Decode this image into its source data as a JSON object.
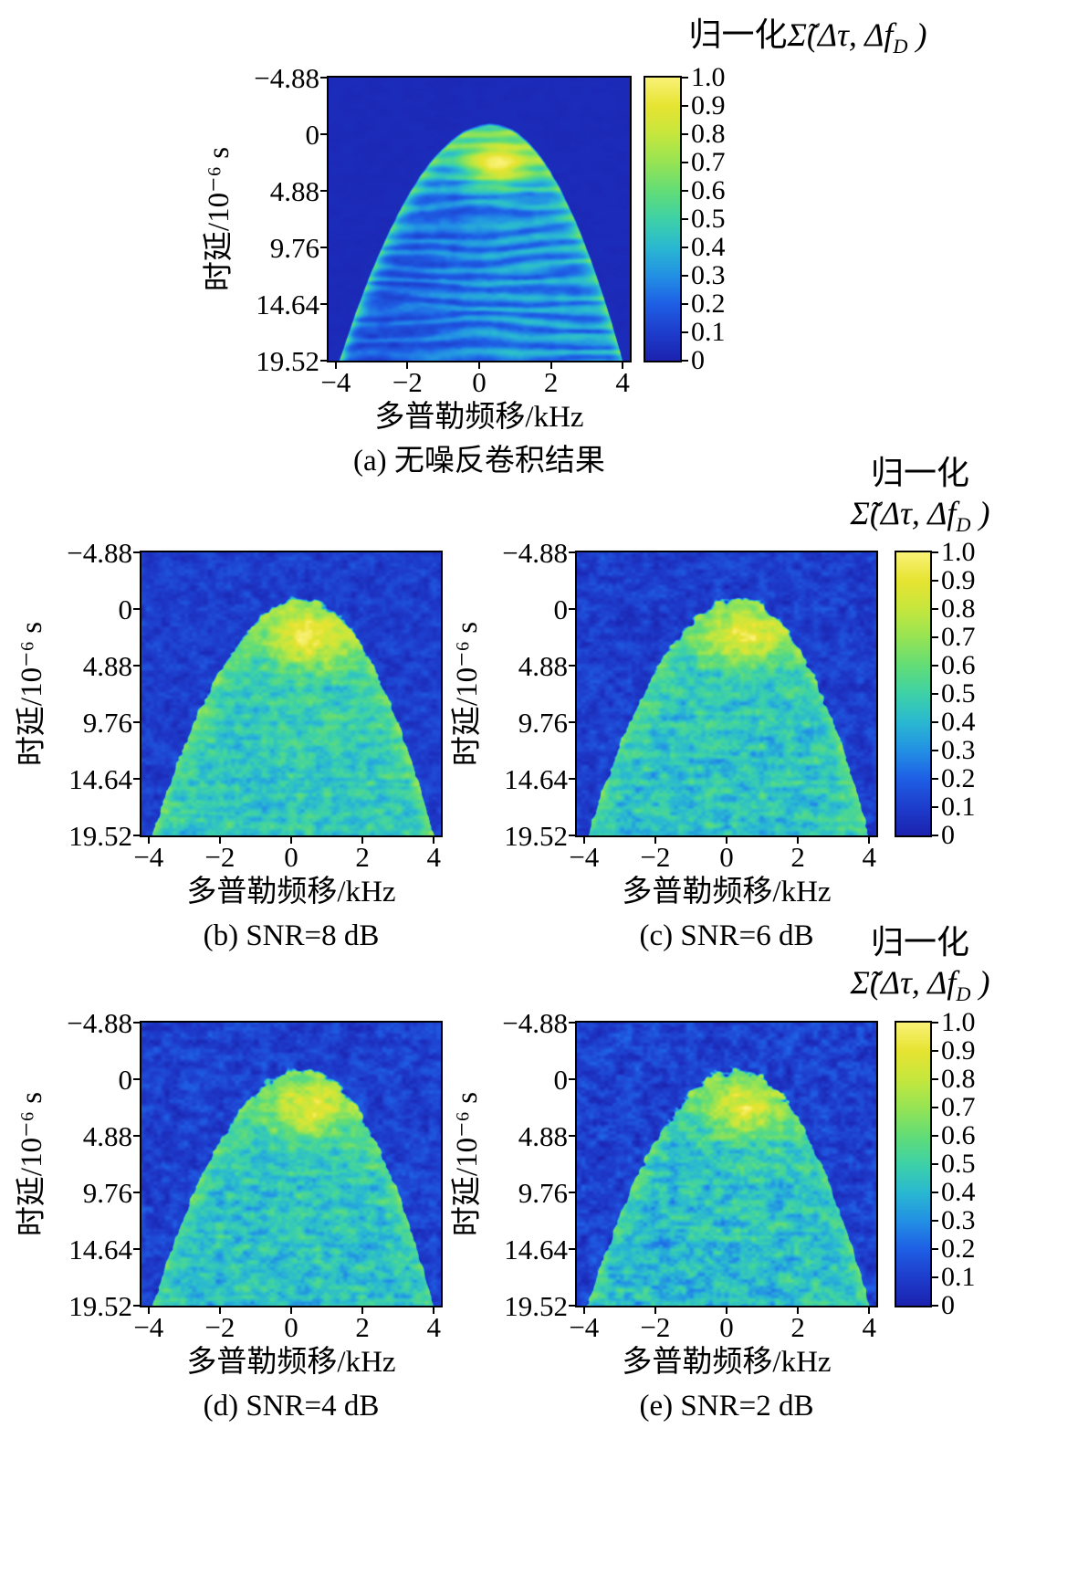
{
  "chart_data": {
    "type": "heatmap",
    "description": "Delay-Doppler normalized deconvolution heatmaps at different SNR levels, parula-like colormap, dome-shaped support with bright peak near zero Doppler and small positive delay",
    "colormap": [
      "#1c23b0",
      "#1e3ecd",
      "#1f60e6",
      "#2391e4",
      "#2ab9d2",
      "#3ed2a8",
      "#63dd77",
      "#97e455",
      "#c6e73e",
      "#e7e432",
      "#f9f276"
    ],
    "colorbar_ticks": [
      "1.0",
      "0.9",
      "0.8",
      "0.7",
      "0.6",
      "0.5",
      "0.4",
      "0.3",
      "0.2",
      "0.1",
      "0"
    ],
    "colorbar_tick_values": [
      1.0,
      0.9,
      0.8,
      0.7,
      0.6,
      0.5,
      0.4,
      0.3,
      0.2,
      0.1,
      0
    ],
    "colorbar_title": {
      "single_line": [
        [
          {
            "text": "归一化"
          },
          {
            "text": "Σ̃(Δτ, Δf",
            "math": true
          },
          {
            "text": "D",
            "math": true,
            "sub": true
          },
          {
            "text": " )",
            "math": true
          }
        ]
      ],
      "two_line": [
        [
          {
            "text": "归一化"
          }
        ],
        [
          {
            "text": "Σ̃(Δτ, Δf",
            "math": true
          },
          {
            "text": "D",
            "math": true,
            "sub": true
          },
          {
            "text": " )",
            "math": true
          }
        ]
      ]
    },
    "charts": [
      {
        "id": "a",
        "caption": "(a) 无噪反卷积结果",
        "snr_db": null,
        "xlabel": "多普勒频移/kHz",
        "ylabel": "时延/10⁻⁶ s",
        "xlim": [
          -4.2,
          4.2
        ],
        "ylim": [
          -4.88,
          19.52
        ],
        "x_tick_labels": [
          "−4",
          "−2",
          "0",
          "2",
          "4"
        ],
        "x_tick_values": [
          -4,
          -2,
          0,
          2,
          4
        ],
        "y_tick_labels": [
          "−4.88",
          "0",
          "4.88",
          "9.76",
          "14.64",
          "19.52"
        ],
        "y_tick_values": [
          -4.88,
          0,
          4.88,
          9.76,
          14.64,
          19.52
        ],
        "render": {
          "seed": 11,
          "apexX": 0.35,
          "apexY": -0.95,
          "kL": 1.13,
          "kR": 1.53,
          "bg": 0.03,
          "bgNoise": 0.012,
          "inBase": 0.4,
          "rimAmp": 0.32,
          "rimW": 1.6,
          "peakX": 0.5,
          "peakY": 2.5,
          "peakSX": 1.05,
          "peakSY": 2.0,
          "peakAmp": 0.58,
          "leftDim": 0.22,
          "stripeAmp": 0.5,
          "stripeF": 5.0,
          "inNoise": 0.05,
          "edgeNoise": 0.06,
          "nfx": 3.0,
          "nfy": 1.6
        }
      },
      {
        "id": "b",
        "caption": "(b) SNR=8 dB",
        "snr_db": 8,
        "xlabel": "多普勒频移/kHz",
        "ylabel": "时延/10⁻⁶ s",
        "xlim": [
          -4.2,
          4.2
        ],
        "ylim": [
          -4.88,
          19.52
        ],
        "x_tick_labels": [
          "−4",
          "−2",
          "0",
          "2",
          "4"
        ],
        "x_tick_values": [
          -4,
          -2,
          0,
          2,
          4
        ],
        "y_tick_labels": [
          "−4.88",
          "0",
          "4.88",
          "9.76",
          "14.64",
          "19.52"
        ],
        "y_tick_values": [
          -4.88,
          0,
          4.88,
          9.76,
          14.64,
          19.52
        ],
        "render": {
          "seed": 22,
          "apexX": 0.35,
          "apexY": -0.95,
          "kL": 1.13,
          "kR": 1.53,
          "bg": 0.1,
          "bgNoise": 0.09,
          "inBase": 0.5,
          "rimAmp": 0.16,
          "rimW": 2.3,
          "peakX": 0.5,
          "peakY": 2.5,
          "peakSX": 1.2,
          "peakSY": 2.4,
          "peakAmp": 0.42,
          "leftDim": 0.04,
          "stripeAmp": 0.12,
          "stripeF": 5.0,
          "inNoise": 0.15,
          "edgeNoise": 0.45,
          "nfx": 4.0,
          "nfy": 1.6
        }
      },
      {
        "id": "c",
        "caption": "(c) SNR=6 dB",
        "snr_db": 6,
        "xlabel": "多普勒频移/kHz",
        "ylabel": "时延/10⁻⁶ s",
        "xlim": [
          -4.2,
          4.2
        ],
        "ylim": [
          -4.88,
          19.52
        ],
        "x_tick_labels": [
          "−4",
          "−2",
          "0",
          "2",
          "4"
        ],
        "x_tick_values": [
          -4,
          -2,
          0,
          2,
          4
        ],
        "y_tick_labels": [
          "−4.88",
          "0",
          "4.88",
          "9.76",
          "14.64",
          "19.52"
        ],
        "y_tick_values": [
          -4.88,
          0,
          4.88,
          9.76,
          14.64,
          19.52
        ],
        "render": {
          "seed": 33,
          "apexX": 0.35,
          "apexY": -0.95,
          "kL": 1.13,
          "kR": 1.53,
          "bg": 0.1,
          "bgNoise": 0.1,
          "inBase": 0.48,
          "rimAmp": 0.15,
          "rimW": 2.3,
          "peakX": 0.5,
          "peakY": 2.5,
          "peakSX": 1.2,
          "peakSY": 2.4,
          "peakAmp": 0.4,
          "leftDim": 0.04,
          "stripeAmp": 0.12,
          "stripeF": 5.0,
          "inNoise": 0.16,
          "edgeNoise": 0.5,
          "nfx": 4.0,
          "nfy": 1.6
        }
      },
      {
        "id": "d",
        "caption": "(d) SNR=4 dB",
        "snr_db": 4,
        "xlabel": "多普勒频移/kHz",
        "ylabel": "时延/10⁻⁶ s",
        "xlim": [
          -4.2,
          4.2
        ],
        "ylim": [
          -4.88,
          19.52
        ],
        "x_tick_labels": [
          "−4",
          "−2",
          "0",
          "2",
          "4"
        ],
        "x_tick_values": [
          -4,
          -2,
          0,
          2,
          4
        ],
        "y_tick_labels": [
          "−4.88",
          "0",
          "4.88",
          "9.76",
          "14.64",
          "19.52"
        ],
        "y_tick_values": [
          -4.88,
          0,
          4.88,
          9.76,
          14.64,
          19.52
        ],
        "render": {
          "seed": 44,
          "apexX": 0.35,
          "apexY": -0.95,
          "kL": 1.13,
          "kR": 1.53,
          "bg": 0.11,
          "bgNoise": 0.11,
          "inBase": 0.47,
          "rimAmp": 0.15,
          "rimW": 2.3,
          "peakX": 0.5,
          "peakY": 2.5,
          "peakSX": 1.2,
          "peakSY": 2.4,
          "peakAmp": 0.4,
          "leftDim": 0.04,
          "stripeAmp": 0.12,
          "stripeF": 5.0,
          "inNoise": 0.17,
          "edgeNoise": 0.5,
          "nfx": 4.0,
          "nfy": 1.6
        }
      },
      {
        "id": "e",
        "caption": "(e) SNR=2 dB",
        "snr_db": 2,
        "xlabel": "多普勒频移/kHz",
        "ylabel": "时延/10⁻⁶ s",
        "xlim": [
          -4.2,
          4.2
        ],
        "ylim": [
          -4.88,
          19.52
        ],
        "x_tick_labels": [
          "−4",
          "−2",
          "0",
          "2",
          "4"
        ],
        "x_tick_values": [
          -4,
          -2,
          0,
          2,
          4
        ],
        "y_tick_labels": [
          "−4.88",
          "0",
          "4.88",
          "9.76",
          "14.64",
          "19.52"
        ],
        "y_tick_values": [
          -4.88,
          0,
          4.88,
          9.76,
          14.64,
          19.52
        ],
        "render": {
          "seed": 55,
          "apexX": 0.35,
          "apexY": -0.95,
          "kL": 1.13,
          "kR": 1.53,
          "bg": 0.11,
          "bgNoise": 0.12,
          "inBase": 0.46,
          "rimAmp": 0.14,
          "rimW": 2.3,
          "peakX": 0.5,
          "peakY": 2.5,
          "peakSX": 1.2,
          "peakSY": 2.4,
          "peakAmp": 0.4,
          "leftDim": 0.04,
          "stripeAmp": 0.12,
          "stripeF": 5.0,
          "inNoise": 0.18,
          "edgeNoise": 0.55,
          "nfx": 4.0,
          "nfy": 1.6
        }
      }
    ]
  }
}
